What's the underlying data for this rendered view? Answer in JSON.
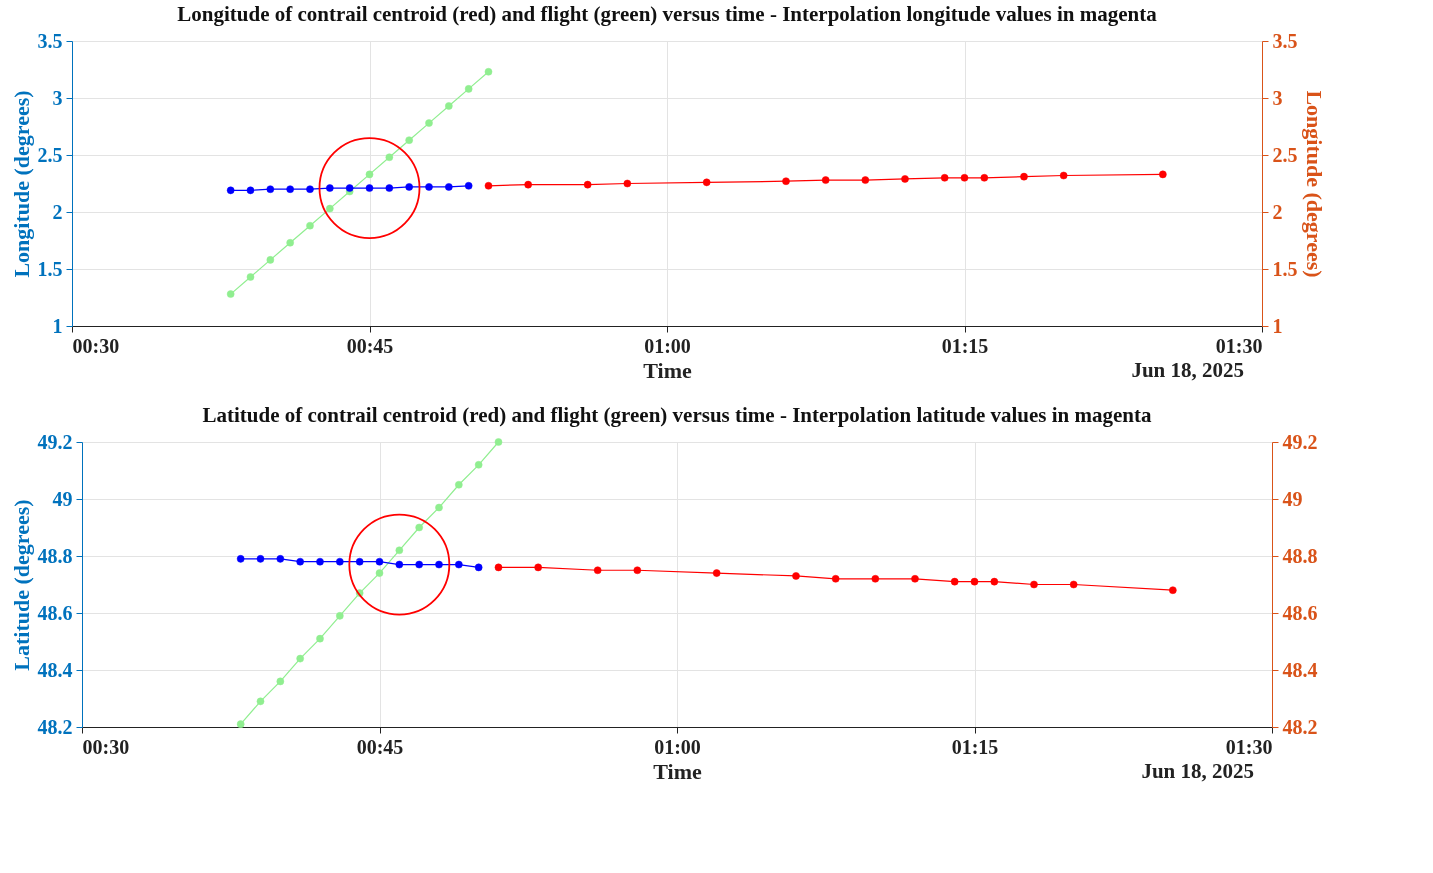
{
  "chart_data": [
    {
      "type": "line",
      "title": "Longitude of contrail centroid (red) and flight (green) versus time - Interpolation longitude values in magenta",
      "xlabel": "Time",
      "ylabel": "Longitude (degrees)",
      "y2label": "Longitude (degrees)",
      "annotations": [
        "Jun 18, 2025"
      ],
      "xlim": [
        "2025-06-18T00:30",
        "2025-06-18T01:30"
      ],
      "xticks": [
        {
          "value": "2025-06-18T00:30",
          "label": "00:30"
        },
        {
          "value": "2025-06-18T00:45",
          "label": "00:45"
        },
        {
          "value": "2025-06-18T01:00",
          "label": "01:00"
        },
        {
          "value": "2025-06-18T01:15",
          "label": "01:15"
        },
        {
          "value": "2025-06-18T01:30",
          "label": "01:30"
        }
      ],
      "ylim": [
        1,
        3.5
      ],
      "yticks": [
        1,
        1.5,
        2,
        2.5,
        3,
        3.5
      ],
      "y2lim": [
        1,
        3.5
      ],
      "y2ticks": [
        1,
        1.5,
        2,
        2.5,
        3,
        3.5
      ],
      "grid": true,
      "marker": "circle",
      "line_style": "solid",
      "series": [
        {
          "color": "#90ee90",
          "x": [
            "2025-06-18T00:38",
            "2025-06-18T00:39",
            "2025-06-18T00:40",
            "2025-06-18T00:41",
            "2025-06-18T00:42",
            "2025-06-18T00:43",
            "2025-06-18T00:44",
            "2025-06-18T00:45",
            "2025-06-18T00:46",
            "2025-06-18T00:47",
            "2025-06-18T00:48",
            "2025-06-18T00:49",
            "2025-06-18T00:50",
            "2025-06-18T00:51"
          ],
          "values": [
            1.28,
            1.43,
            1.58,
            1.73,
            1.88,
            2.03,
            2.18,
            2.33,
            2.48,
            2.63,
            2.78,
            2.93,
            3.08,
            3.23
          ]
        },
        {
          "color": "#0000ff",
          "x": [
            "2025-06-18T00:38",
            "2025-06-18T00:39",
            "2025-06-18T00:40",
            "2025-06-18T00:41",
            "2025-06-18T00:42",
            "2025-06-18T00:43",
            "2025-06-18T00:44",
            "2025-06-18T00:45",
            "2025-06-18T00:46",
            "2025-06-18T00:47",
            "2025-06-18T00:48",
            "2025-06-18T00:49",
            "2025-06-18T00:50"
          ],
          "values": [
            2.19,
            2.19,
            2.2,
            2.2,
            2.2,
            2.21,
            2.21,
            2.21,
            2.21,
            2.22,
            2.22,
            2.22,
            2.23
          ]
        },
        {
          "color": "#ff0000",
          "x": [
            "2025-06-18T00:51",
            "2025-06-18T00:53",
            "2025-06-18T00:56",
            "2025-06-18T00:58",
            "2025-06-18T01:02",
            "2025-06-18T01:06",
            "2025-06-18T01:08",
            "2025-06-18T01:10",
            "2025-06-18T01:12",
            "2025-06-18T01:14",
            "2025-06-18T01:15",
            "2025-06-18T01:16",
            "2025-06-18T01:18",
            "2025-06-18T01:20",
            "2025-06-18T01:25"
          ],
          "values": [
            2.23,
            2.24,
            2.24,
            2.25,
            2.26,
            2.27,
            2.28,
            2.28,
            2.29,
            2.3,
            2.3,
            2.3,
            2.31,
            2.32,
            2.33
          ]
        }
      ]
    },
    {
      "type": "line",
      "title": "Latitude of contrail centroid (red) and flight (green) versus time - Interpolation latitude values in magenta",
      "xlabel": "Time",
      "ylabel": "Latitude (degrees)",
      "annotations": [
        "Jun 18, 2025"
      ],
      "xlim": [
        "2025-06-18T00:30",
        "2025-06-18T01:30"
      ],
      "xticks": [
        {
          "value": "2025-06-18T00:30",
          "label": "00:30"
        },
        {
          "value": "2025-06-18T00:45",
          "label": "00:45"
        },
        {
          "value": "2025-06-18T01:00",
          "label": "01:00"
        },
        {
          "value": "2025-06-18T01:15",
          "label": "01:15"
        },
        {
          "value": "2025-06-18T01:30",
          "label": "01:30"
        }
      ],
      "ylim": [
        48.2,
        49.2
      ],
      "yticks": [
        48.2,
        48.4,
        48.6,
        48.8,
        49,
        49.2
      ],
      "y2lim": [
        48.2,
        49.2
      ],
      "y2ticks": [
        48.2,
        48.4,
        48.6,
        48.8,
        49,
        49.2
      ],
      "grid": true,
      "marker": "circle",
      "line_style": "solid",
      "series": [
        {
          "color": "#90ee90",
          "x": [
            "2025-06-18T00:38",
            "2025-06-18T00:39",
            "2025-06-18T00:40",
            "2025-06-18T00:41",
            "2025-06-18T00:42",
            "2025-06-18T00:43",
            "2025-06-18T00:44",
            "2025-06-18T00:45",
            "2025-06-18T00:46",
            "2025-06-18T00:47",
            "2025-06-18T00:48",
            "2025-06-18T00:49",
            "2025-06-18T00:50",
            "2025-06-18T00:51"
          ],
          "values": [
            48.21,
            48.29,
            48.36,
            48.44,
            48.51,
            48.59,
            48.67,
            48.74,
            48.82,
            48.9,
            48.97,
            49.05,
            49.12,
            49.2
          ]
        },
        {
          "color": "#0000ff",
          "x": [
            "2025-06-18T00:38",
            "2025-06-18T00:39",
            "2025-06-18T00:40",
            "2025-06-18T00:41",
            "2025-06-18T00:42",
            "2025-06-18T00:43",
            "2025-06-18T00:44",
            "2025-06-18T00:45",
            "2025-06-18T00:46",
            "2025-06-18T00:47",
            "2025-06-18T00:48",
            "2025-06-18T00:49",
            "2025-06-18T00:50"
          ],
          "values": [
            48.79,
            48.79,
            48.79,
            48.78,
            48.78,
            48.78,
            48.78,
            48.78,
            48.77,
            48.77,
            48.77,
            48.77,
            48.76
          ]
        },
        {
          "color": "#ff0000",
          "x": [
            "2025-06-18T00:51",
            "2025-06-18T00:53",
            "2025-06-18T00:56",
            "2025-06-18T00:58",
            "2025-06-18T01:02",
            "2025-06-18T01:06",
            "2025-06-18T01:08",
            "2025-06-18T01:10",
            "2025-06-18T01:12",
            "2025-06-18T01:14",
            "2025-06-18T01:15",
            "2025-06-18T01:16",
            "2025-06-18T01:18",
            "2025-06-18T01:20",
            "2025-06-18T01:25"
          ],
          "values": [
            48.76,
            48.76,
            48.75,
            48.75,
            48.74,
            48.73,
            48.72,
            48.72,
            48.72,
            48.71,
            48.71,
            48.71,
            48.7,
            48.7,
            48.68
          ]
        }
      ]
    }
  ]
}
